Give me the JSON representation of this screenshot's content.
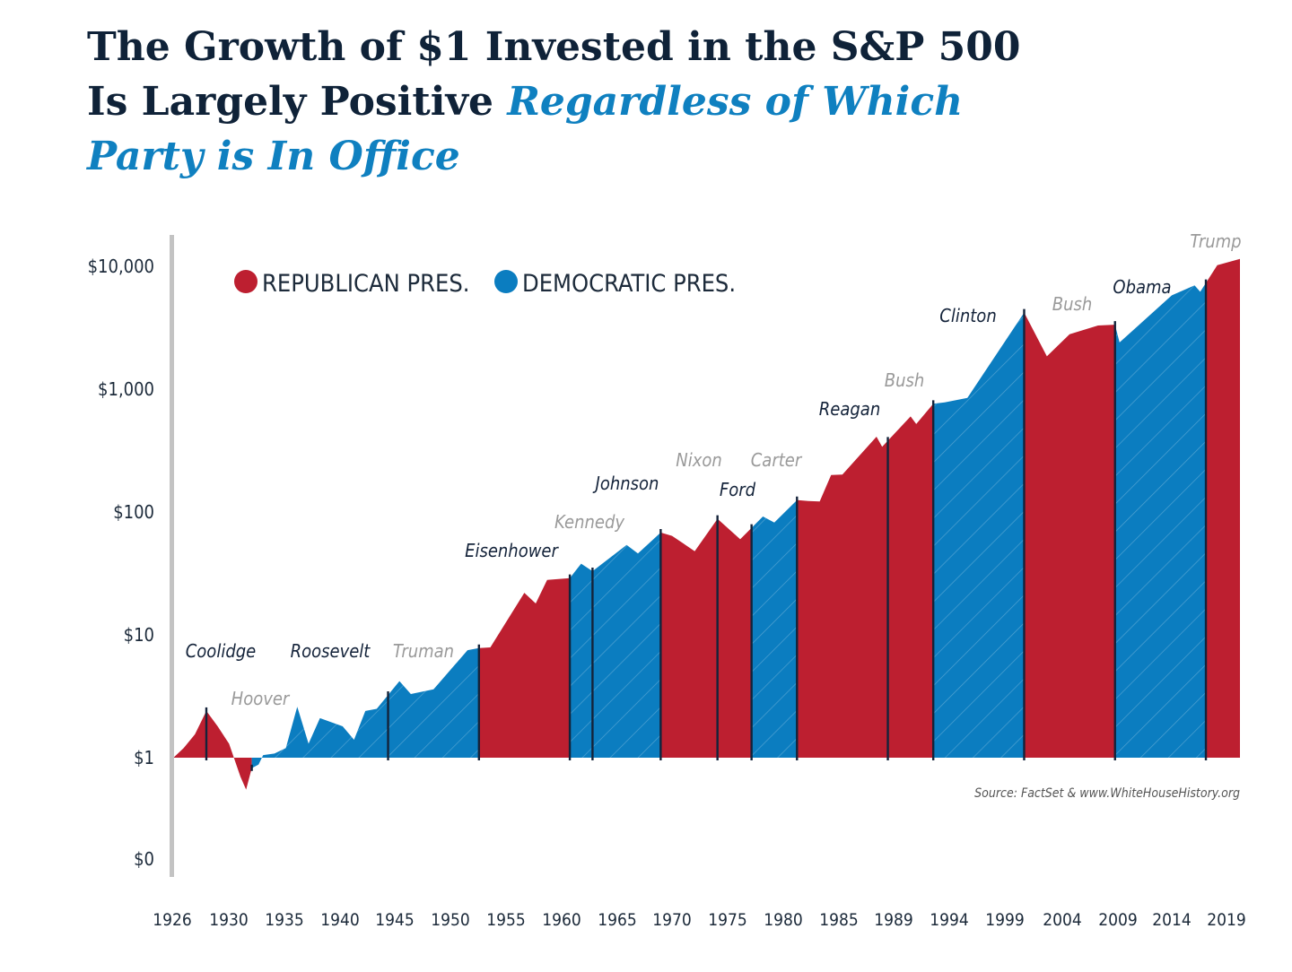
{
  "title": {
    "line1": "The Growth of $1 Invested in the S&P 500",
    "line2_plain": "Is Largely Positive ",
    "line2_highlight": "Regardless of Which",
    "line3_highlight": "Party is In Office"
  },
  "colors": {
    "republican": "#bd1f30",
    "democratic": "#0b7dc0",
    "title_dark": "#0f2238",
    "title_accent": "#0f80c0"
  },
  "source": "Source: FactSet & www.WhiteHouseHistory.org",
  "chart_data": {
    "type": "area",
    "y_scale": "log",
    "y_ticks": [
      {
        "label": "$10,000",
        "value": 10000
      },
      {
        "label": "$1,000",
        "value": 1000
      },
      {
        "label": "$100",
        "value": 100
      },
      {
        "label": "$10",
        "value": 10
      },
      {
        "label": "$1",
        "value": 1
      },
      {
        "label": "$0",
        "value": 0.1
      }
    ],
    "x_ticks": [
      "1926",
      "1930",
      "1935",
      "1940",
      "1945",
      "1950",
      "1955",
      "1960",
      "1965",
      "1970",
      "1975",
      "1980",
      "1985",
      "1989",
      "1994",
      "1999",
      "2004",
      "2009",
      "2014",
      "2019"
    ],
    "legend": [
      {
        "label": "REPUBLICAN PRES.",
        "party": "R"
      },
      {
        "label": "DEMOCRATIC PRES.",
        "party": "D"
      }
    ],
    "baseline": 1,
    "series": [
      [
        1926,
        0.98
      ],
      [
        1927,
        1.2
      ],
      [
        1928,
        1.55
      ],
      [
        1929,
        2.4
      ],
      [
        1930,
        1.8
      ],
      [
        1931,
        1.3
      ],
      [
        1932,
        0.7
      ],
      [
        1932.5,
        0.55
      ],
      [
        1933,
        0.82
      ],
      [
        1933.6,
        0.88
      ],
      [
        1934,
        1.05
      ],
      [
        1935,
        1.08
      ],
      [
        1936,
        1.2
      ],
      [
        1937,
        2.6
      ],
      [
        1938,
        1.3
      ],
      [
        1939,
        2.1
      ],
      [
        1941,
        1.8
      ],
      [
        1942,
        1.4
      ],
      [
        1943,
        2.4
      ],
      [
        1944,
        2.5
      ],
      [
        1946,
        4.2
      ],
      [
        1947,
        3.3
      ],
      [
        1949,
        3.6
      ],
      [
        1952,
        7.5
      ],
      [
        1953,
        7.8
      ],
      [
        1954,
        7.9
      ],
      [
        1957,
        22
      ],
      [
        1958,
        18
      ],
      [
        1959,
        28
      ],
      [
        1961,
        29
      ],
      [
        1962,
        38
      ],
      [
        1963,
        33
      ],
      [
        1966,
        54
      ],
      [
        1967,
        46
      ],
      [
        1969,
        68
      ],
      [
        1970,
        64
      ],
      [
        1972,
        48
      ],
      [
        1974,
        88
      ],
      [
        1976,
        60
      ],
      [
        1978,
        92
      ],
      [
        1979,
        82
      ],
      [
        1981,
        125
      ],
      [
        1982,
        123
      ],
      [
        1983,
        122
      ],
      [
        1984,
        200
      ],
      [
        1985,
        202
      ],
      [
        1988,
        410
      ],
      [
        1988.5,
        340
      ],
      [
        1991,
        600
      ],
      [
        1991.5,
        520
      ],
      [
        1993,
        760
      ],
      [
        1994,
        780
      ],
      [
        1996,
        850
      ],
      [
        2001,
        4200
      ],
      [
        2003,
        1850
      ],
      [
        2005,
        2800
      ],
      [
        2007.5,
        3300
      ],
      [
        2009,
        3350
      ],
      [
        2009.4,
        2400
      ],
      [
        2014,
        5800
      ],
      [
        2016,
        7000
      ],
      [
        2016.5,
        6200
      ],
      [
        2018,
        10200
      ],
      [
        2020,
        11500
      ]
    ],
    "terms": [
      {
        "name": "Coolidge",
        "party": "R",
        "start": 1926,
        "end": 1929,
        "label_style": "dark"
      },
      {
        "name": "Hoover",
        "party": "R",
        "start": 1929,
        "end": 1933,
        "label_style": "grey"
      },
      {
        "name": "Roosevelt",
        "party": "D",
        "start": 1933,
        "end": 1945,
        "label_style": "dark"
      },
      {
        "name": "Truman",
        "party": "D",
        "start": 1945,
        "end": 1953,
        "label_style": "grey"
      },
      {
        "name": "Eisenhower",
        "party": "R",
        "start": 1953,
        "end": 1961,
        "label_style": "dark"
      },
      {
        "name": "Kennedy",
        "party": "D",
        "start": 1961,
        "end": 1963,
        "label_style": "grey"
      },
      {
        "name": "Johnson",
        "party": "D",
        "start": 1963,
        "end": 1969,
        "label_style": "dark"
      },
      {
        "name": "Nixon",
        "party": "R",
        "start": 1969,
        "end": 1974,
        "label_style": "grey"
      },
      {
        "name": "Ford",
        "party": "R",
        "start": 1974,
        "end": 1977,
        "label_style": "dark"
      },
      {
        "name": "Carter",
        "party": "D",
        "start": 1977,
        "end": 1981,
        "label_style": "grey"
      },
      {
        "name": "Reagan",
        "party": "R",
        "start": 1981,
        "end": 1989,
        "label_style": "dark"
      },
      {
        "name": "Bush",
        "party": "R",
        "start": 1989,
        "end": 1993,
        "label_style": "grey"
      },
      {
        "name": "Clinton",
        "party": "D",
        "start": 1993,
        "end": 2001,
        "label_style": "dark"
      },
      {
        "name": "Bush",
        "party": "R",
        "start": 2001,
        "end": 2009,
        "label_style": "grey"
      },
      {
        "name": "Obama",
        "party": "D",
        "start": 2009,
        "end": 2017,
        "label_style": "dark"
      },
      {
        "name": "Trump",
        "party": "R",
        "start": 2017,
        "end": 2020,
        "label_style": "grey"
      }
    ]
  }
}
